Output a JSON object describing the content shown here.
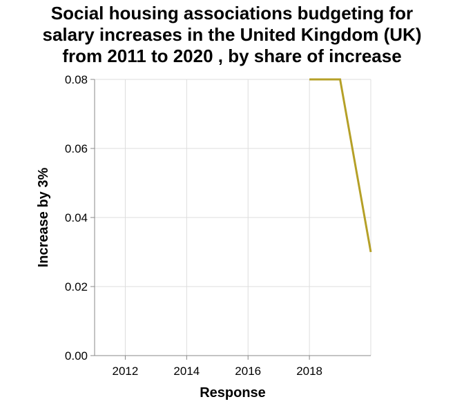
{
  "chart_data": {
    "type": "line",
    "title_lines": [
      "Social housing associations budgeting for",
      "salary increases in the United Kingdom (UK)",
      "from 2011 to 2020 , by share of increase"
    ],
    "xlabel": "Response",
    "ylabel": "Increase by 3%",
    "xlim": [
      2011,
      2020
    ],
    "ylim": [
      0,
      0.08
    ],
    "x_ticks": [
      2012,
      2014,
      2016,
      2018
    ],
    "x_tick_labels": [
      "2012",
      "2014",
      "2016",
      "2018"
    ],
    "y_ticks": [
      0,
      0.02,
      0.04,
      0.06,
      0.08
    ],
    "y_tick_labels": [
      "0.00",
      "0.02",
      "0.04",
      "0.06",
      "0.08"
    ],
    "grid": true,
    "series": [
      {
        "color": "#b5a027",
        "x": [
          2018,
          2019,
          2020
        ],
        "y": [
          0.08,
          0.08,
          0.03
        ]
      }
    ]
  }
}
